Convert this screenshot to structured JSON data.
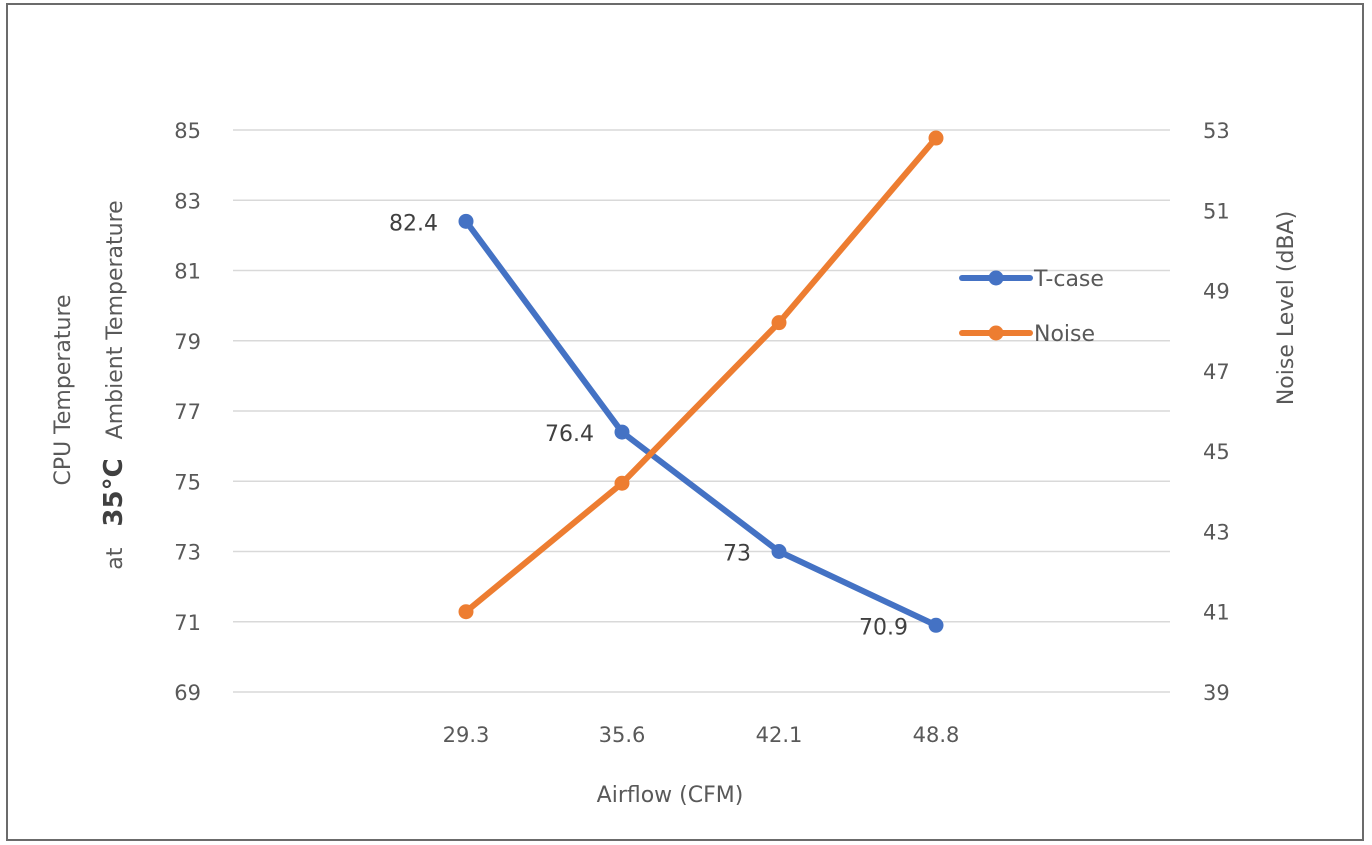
{
  "chart_data": {
    "type": "line",
    "categories": [
      "29.3",
      "35.6",
      "42.1",
      "48.8"
    ],
    "xlabel": "Airflow (CFM)",
    "ylabel_line1": "CPU Temperature",
    "ylabel_line2_prefix": "at",
    "ylabel_line2_bold": "35°C",
    "ylabel_line2_suffix": "Ambient Temperature",
    "y2label": "Noise Level (dBA)",
    "ylim": [
      69,
      85
    ],
    "yticks": [
      "69",
      "71",
      "73",
      "75",
      "77",
      "79",
      "81",
      "83",
      "85"
    ],
    "y2lim": [
      39,
      53
    ],
    "y2ticks": [
      "39",
      "41",
      "43",
      "45",
      "47",
      "49",
      "51",
      "53"
    ],
    "grid": true,
    "legend_position": "right",
    "series": [
      {
        "name": "T-case",
        "axis": "left",
        "color": "#4472C4",
        "values": [
          82.4,
          76.4,
          73,
          70.9
        ],
        "data_labels": [
          "82.4",
          "76.4",
          "73",
          "70.9"
        ]
      },
      {
        "name": "Noise",
        "axis": "right",
        "color": "#ED7D31",
        "values": [
          41.0,
          44.2,
          48.2,
          52.8
        ]
      }
    ]
  }
}
